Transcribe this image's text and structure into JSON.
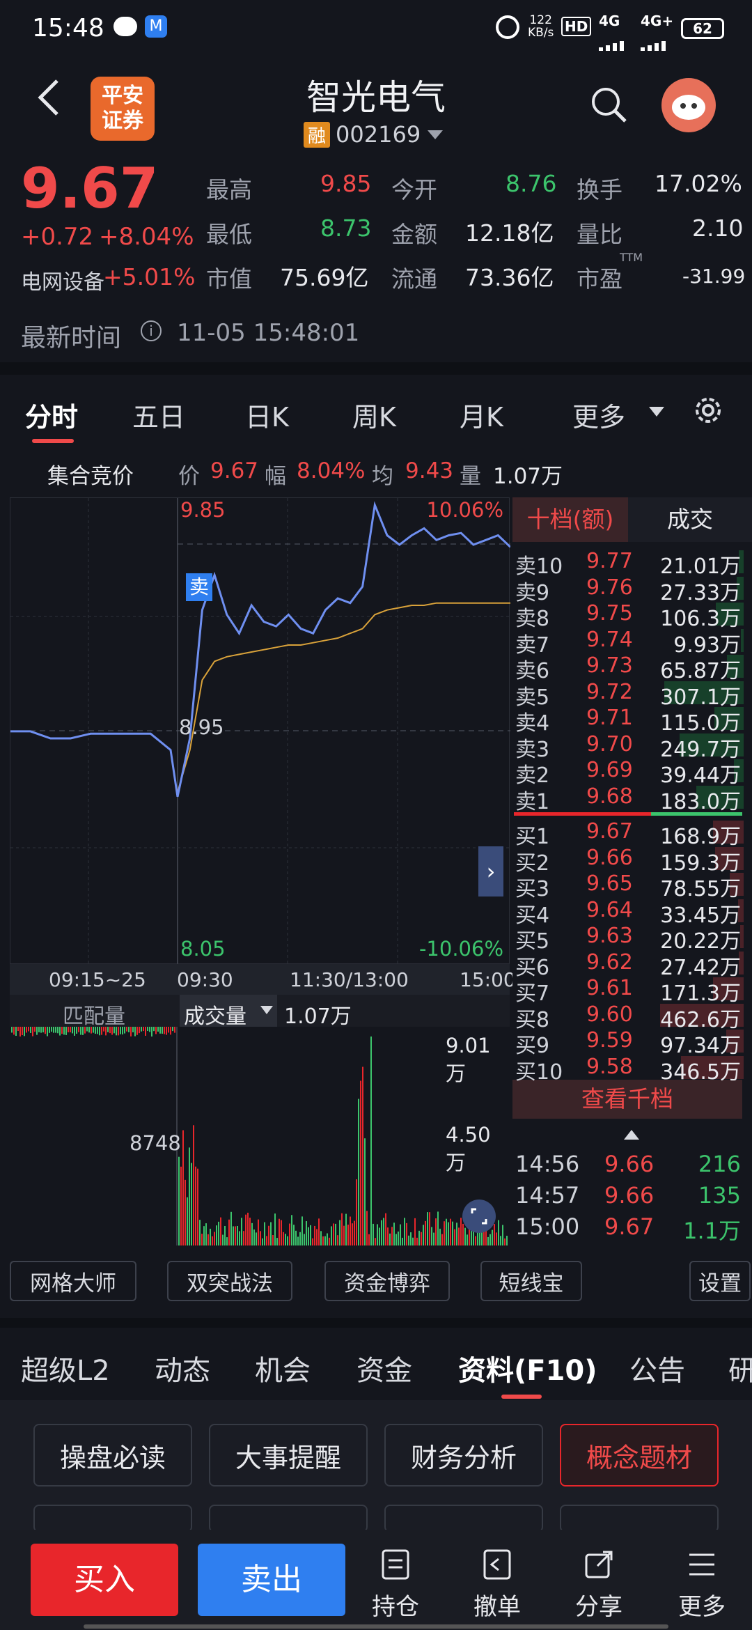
{
  "status_bar": {
    "time": "15:48",
    "net_speed": "122\nKB/s",
    "net_speed_top": "122",
    "net_speed_bottom": "KB/s",
    "hd": "HD",
    "sig1": "4G",
    "sig2": "4G+",
    "battery": "62"
  },
  "header": {
    "back": "‹",
    "broker_line1": "平安",
    "broker_line2": "证券",
    "stock_name": "智光电气",
    "margin_badge": "融",
    "stock_code": "002169"
  },
  "quote": {
    "price": "9.67",
    "change": "+0.72",
    "change_pct": "+8.04%",
    "sector": "电网设备",
    "sector_pct": "+5.01%",
    "high_label": "最高",
    "high": "9.85",
    "open_label": "今开",
    "open": "8.76",
    "turnover_label": "换手",
    "turnover": "17.02%",
    "low_label": "最低",
    "low": "8.73",
    "amount_label": "金额",
    "amount": "12.18亿",
    "vol_ratio_label": "量比",
    "vol_ratio": "2.10",
    "mcap_label": "市值",
    "mcap": "75.69亿",
    "float_label": "流通",
    "float": "73.36亿",
    "pe_label": "市盈",
    "pe_sup": "TTM",
    "pe": "-31.99",
    "time_label": "最新时间",
    "time_value": "11-05 15:48:01"
  },
  "chart_tabs": [
    "分时",
    "五日",
    "日K",
    "周K",
    "月K",
    "更多"
  ],
  "info_line": {
    "auction": "集合竞价",
    "price_label": "价",
    "price": "9.67",
    "pct_label": "幅",
    "pct": "8.04%",
    "avg_label": "均",
    "avg": "9.43",
    "vol_label": "量",
    "vol": "1.07万"
  },
  "chart_labels": {
    "top_price": "9.85",
    "top_pct": "10.06%",
    "mid_price": "8.95",
    "bot_price": "8.05",
    "bot_pct": "-10.06%",
    "sell_mark": "卖",
    "t1": "09:15~25",
    "t2": "09:30",
    "t3": "11:30/13:00",
    "t4": "15:00",
    "match_vol": "匹配量",
    "vol_dropdown": "成交量",
    "vol_value": "1.07万",
    "vol_max": "9.01万",
    "vol_mid": "4.50万",
    "auction_vol": "8748"
  },
  "chart_data": {
    "type": "line",
    "title": "",
    "series": [
      {
        "name": "价",
        "x_range": [
          "09:30",
          "15:00"
        ],
        "note": "intraday price line"
      },
      {
        "name": "均",
        "x_range": [
          "09:30",
          "15:00"
        ]
      }
    ],
    "ylim": [
      8.05,
      9.85
    ],
    "y_mid": 8.95,
    "volume_max": "9.01万"
  },
  "orderbook": {
    "tab_active": "十档(额)",
    "tab_other": "成交",
    "asks": [
      {
        "l": "卖10",
        "p": "9.77",
        "v": "21.01万",
        "w": 0.06
      },
      {
        "l": "卖9",
        "p": "9.76",
        "v": "27.33万",
        "w": 0.08
      },
      {
        "l": "卖8",
        "p": "9.75",
        "v": "106.3万",
        "w": 0.33
      },
      {
        "l": "卖7",
        "p": "9.74",
        "v": "9.93万",
        "w": 0.03
      },
      {
        "l": "卖6",
        "p": "9.73",
        "v": "65.87万",
        "w": 0.2
      },
      {
        "l": "卖5",
        "p": "9.72",
        "v": "307.1万",
        "w": 0.95
      },
      {
        "l": "卖4",
        "p": "9.71",
        "v": "115.0万",
        "w": 0.35
      },
      {
        "l": "卖3",
        "p": "9.70",
        "v": "249.7万",
        "w": 0.77
      },
      {
        "l": "卖2",
        "p": "9.69",
        "v": "39.44万",
        "w": 0.12
      },
      {
        "l": "卖1",
        "p": "9.68",
        "v": "183.0万",
        "w": 0.57
      }
    ],
    "bids": [
      {
        "l": "买1",
        "p": "9.67",
        "v": "168.9万",
        "w": 0.37
      },
      {
        "l": "买2",
        "p": "9.66",
        "v": "159.3万",
        "w": 0.34
      },
      {
        "l": "买3",
        "p": "9.65",
        "v": "78.55万",
        "w": 0.17
      },
      {
        "l": "买4",
        "p": "9.64",
        "v": "33.45万",
        "w": 0.07
      },
      {
        "l": "买5",
        "p": "9.63",
        "v": "20.22万",
        "w": 0.04
      },
      {
        "l": "买6",
        "p": "9.62",
        "v": "27.42万",
        "w": 0.06
      },
      {
        "l": "买7",
        "p": "9.61",
        "v": "171.3万",
        "w": 0.37
      },
      {
        "l": "买8",
        "p": "9.60",
        "v": "462.6万",
        "w": 1.0
      },
      {
        "l": "买9",
        "p": "9.59",
        "v": "97.34万",
        "w": 0.21
      },
      {
        "l": "买10",
        "p": "9.58",
        "v": "346.5万",
        "w": 0.75
      }
    ],
    "more": "查看千档",
    "trades": [
      {
        "t": "14:56",
        "p": "9.66",
        "v": "216"
      },
      {
        "t": "14:57",
        "p": "9.66",
        "v": "135"
      },
      {
        "t": "15:00",
        "p": "9.67",
        "v": "1.1万"
      }
    ]
  },
  "tools": [
    "网格大师",
    "双突战法",
    "资金博弈",
    "短线宝",
    "设置"
  ],
  "sub_tabs": [
    "超级L2",
    "动态",
    "机会",
    "资金",
    "资料(F10)",
    "公告",
    "研"
  ],
  "f10_buttons": [
    "操盘必读",
    "大事提醒",
    "财务分析",
    "概念题材"
  ],
  "bottom_bar": {
    "buy": "买入",
    "sell": "卖出",
    "position": "持仓",
    "cancel": "撤单",
    "share": "分享",
    "more": "更多"
  },
  "colors": {
    "up": "#f04a4a",
    "down": "#3cc46c",
    "price_line": "#6f8ff0",
    "avg_line": "#d9a23a",
    "buy_btn": "#e8262b",
    "sell_btn": "#2f7ff0"
  }
}
